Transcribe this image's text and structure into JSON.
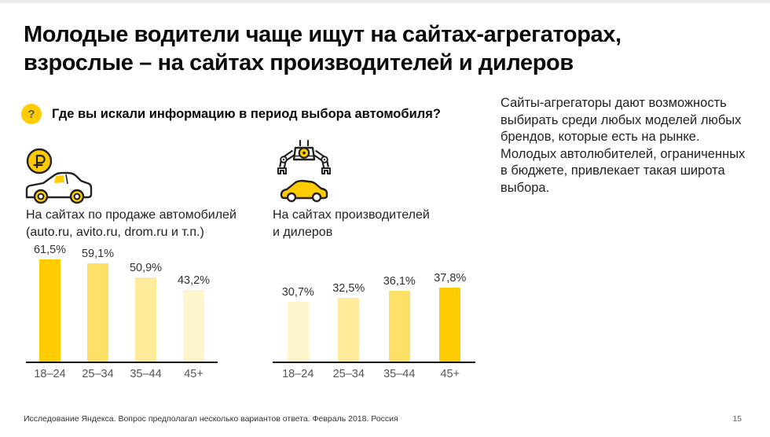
{
  "slide": {
    "title_line1": "Молодые водители чаще ищут на сайтах-агрегаторах,",
    "title_line2": "взрослые – на сайтах производителей и дилеров",
    "question_mark": "?",
    "question": "Где вы искали информацию в период выбора автомобиля?",
    "note": "Сайты-агрегаторы дают возможность выбирать среди любых моделей любых брендов, которые есть на рынке. Молодых автолюбителей, ограниченных в бюджете, привлекает такая широта выбора.",
    "footer_note": "Исследование Яндекса. Вопрос предполагал несколько вариантов ответа. Февраль 2018. Россия",
    "page_number": "15",
    "accent_color": "#FFCC00"
  },
  "chart_data": [
    {
      "type": "bar",
      "icon": "car-with-ruble-coin",
      "title": "На сайтах по продаже автомобилей (auto.ru, avito.ru, drom.ru и т.п.)",
      "title_line1": "На сайтах по продаже автомобилей",
      "title_line2": "(auto.ru, avito.ru, drom.ru и т.п.)",
      "categories": [
        "18–24",
        "25–34",
        "35–44",
        "45+"
      ],
      "values": [
        61.5,
        59.1,
        50.9,
        43.2
      ],
      "labels": [
        "61,5%",
        "59,1%",
        "50,9%",
        "43,2%"
      ],
      "bar_colors": [
        "#FFCC00",
        "#FFE066",
        "#FFEB99",
        "#FFF5CC"
      ],
      "ylim": [
        0,
        65
      ],
      "grid": false,
      "value_labels_position": "above-bars"
    },
    {
      "type": "bar",
      "icon": "factory-claw-with-car",
      "title": "На сайтах производителей и дилеров",
      "title_line1": "На сайтах производителей",
      "title_line2": "и дилеров",
      "categories": [
        "18–24",
        "25–34",
        "35–44",
        "45+"
      ],
      "values": [
        30.7,
        32.5,
        36.1,
        37.8
      ],
      "labels": [
        "30,7%",
        "32,5%",
        "36,1%",
        "37,8%"
      ],
      "bar_colors": [
        "#FFF5CC",
        "#FFEB99",
        "#FFE066",
        "#FFCC00"
      ],
      "ylim": [
        0,
        55
      ],
      "grid": false,
      "value_labels_position": "above-bars"
    }
  ]
}
